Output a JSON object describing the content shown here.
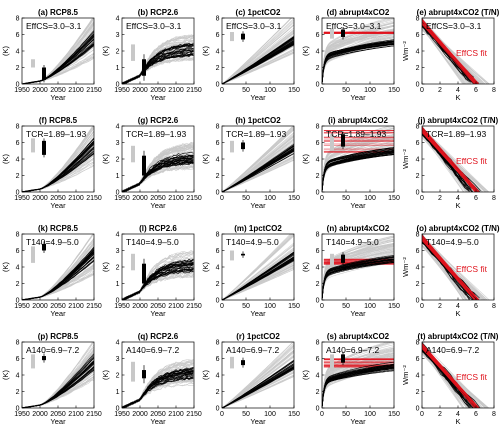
{
  "colors": {
    "ensemble": "#c8c8c8",
    "model": "#000000",
    "fit": "#e0141e"
  },
  "chart_data": [
    {
      "id": "a",
      "type": "line",
      "title": "(a) RCP8.5",
      "ylabel": "(K)",
      "xlabel": "Year",
      "xlim": [
        1950,
        2150
      ],
      "ylim": [
        0,
        8
      ],
      "xticks": [
        1950,
        2000,
        2050,
        2100,
        2150
      ],
      "yticks": [
        0,
        2,
        4,
        6,
        8
      ],
      "annotation": "EffCS=3.0–3.1",
      "kind": "rcp85",
      "box": {
        "light": [
          2,
          3
        ],
        "dark": [
          0.5,
          2
        ]
      }
    },
    {
      "id": "b",
      "type": "line",
      "title": "(b) RCP2.6",
      "ylabel": "(K)",
      "xlabel": "Year",
      "xlim": [
        1950,
        2150
      ],
      "ylim": [
        0,
        4
      ],
      "xticks": [
        1950,
        2000,
        2050,
        2100,
        2150
      ],
      "yticks": [
        0,
        1,
        2,
        3,
        4
      ],
      "annotation": "EffCS=3.0–3.1",
      "kind": "rcp26",
      "box": {
        "light": [
          1.4,
          2.4
        ],
        "dark": [
          0.5,
          1.5
        ]
      }
    },
    {
      "id": "c",
      "type": "line",
      "title": "(c) 1pctCO2",
      "ylabel": "(K)",
      "xlabel": "Year",
      "xlim": [
        0,
        150
      ],
      "ylim": [
        0,
        8
      ],
      "xticks": [
        0,
        50,
        100,
        150
      ],
      "yticks": [
        0,
        2,
        4,
        6,
        8
      ],
      "annotation": "EffCS=3.0–3.1",
      "kind": "pct",
      "box": {
        "light": [
          5.2,
          6.3
        ],
        "dark": [
          5.4,
          6.1
        ]
      }
    },
    {
      "id": "d",
      "type": "line",
      "title": "(d) abrupt4xCO2",
      "ylabel": "(K)",
      "xlabel": "Year",
      "xlim": [
        0,
        150
      ],
      "ylim": [
        0,
        8
      ],
      "xticks": [
        0,
        50,
        100,
        150
      ],
      "yticks": [
        0,
        2,
        4,
        6,
        8
      ],
      "annotation": "EffCS=3.0–3.1",
      "kind": "abrupt",
      "hfit": [
        6.1,
        6.3
      ],
      "box": {
        "light": [
          5.5,
          6.7
        ],
        "dark": [
          5.7,
          6.6
        ]
      }
    },
    {
      "id": "e",
      "type": "scatter",
      "title": "(e) abrupt4xCO2 (T/N)",
      "ylabel": "Wm⁻²",
      "xlabel": "K",
      "xlim": [
        0,
        8
      ],
      "ylim": [
        0,
        8
      ],
      "xticks": [
        0,
        2,
        4,
        6,
        8
      ],
      "yticks": [
        0,
        2,
        4,
        6,
        8
      ],
      "annotation": "EffCS=3.0–3.1",
      "fit_label": "EffCS fit",
      "kind": "tn"
    },
    {
      "id": "f",
      "type": "line",
      "title": "(f) RCP8.5",
      "ylabel": "(K)",
      "xlabel": "Year",
      "xlim": [
        1950,
        2150
      ],
      "ylim": [
        0,
        8
      ],
      "xticks": [
        1950,
        2000,
        2050,
        2100,
        2150
      ],
      "yticks": [
        0,
        2,
        4,
        6,
        8
      ],
      "annotation": "TCR=1.89–1.93",
      "kind": "rcp85",
      "box": {
        "light": [
          4.8,
          6.5
        ],
        "dark": [
          4.5,
          6.2
        ]
      }
    },
    {
      "id": "g",
      "type": "line",
      "title": "(g) RCP2.6",
      "ylabel": "(K)",
      "xlabel": "Year",
      "xlim": [
        1950,
        2150
      ],
      "ylim": [
        0,
        4
      ],
      "xticks": [
        1950,
        2000,
        2050,
        2100,
        2150
      ],
      "yticks": [
        0,
        1,
        2,
        3,
        4
      ],
      "annotation": "TCR=1.89–1.93",
      "kind": "rcp26",
      "box": {
        "light": [
          1.8,
          2.8
        ],
        "dark": [
          1.0,
          2.2
        ]
      }
    },
    {
      "id": "h",
      "type": "line",
      "title": "(h) 1pctCO2",
      "ylabel": "(K)",
      "xlabel": "Year",
      "xlim": [
        0,
        150
      ],
      "ylim": [
        0,
        8
      ],
      "xticks": [
        0,
        50,
        100,
        150
      ],
      "yticks": [
        0,
        2,
        4,
        6,
        8
      ],
      "annotation": "TCR=1.89–1.93",
      "kind": "pct",
      "box": {
        "light": [
          4.8,
          6.2
        ],
        "dark": [
          5.2,
          6.0
        ]
      }
    },
    {
      "id": "i",
      "type": "line",
      "title": "(i) abrupt4xCO2",
      "ylabel": "(K)",
      "xlabel": "Year",
      "xlim": [
        0,
        150
      ],
      "ylim": [
        0,
        8
      ],
      "xticks": [
        0,
        50,
        100,
        150
      ],
      "yticks": [
        0,
        2,
        4,
        6,
        8
      ],
      "annotation": "TCR=1.89–1.93",
      "kind": "abrupt",
      "hfit": [
        4.8,
        7.5
      ],
      "box": {
        "light": [
          5.0,
          7.0
        ],
        "dark": [
          5.5,
          7.0
        ]
      }
    },
    {
      "id": "j",
      "type": "scatter",
      "title": "(j) abrupt4xCO2 (T/N)",
      "ylabel": "Wm⁻²",
      "xlabel": "K",
      "xlim": [
        0,
        8
      ],
      "ylim": [
        0,
        8
      ],
      "xticks": [
        0,
        2,
        4,
        6,
        8
      ],
      "yticks": [
        0,
        2,
        4,
        6,
        8
      ],
      "annotation": "TCR=1.89–1.93",
      "fit_label": "EffCS fit",
      "kind": "tn"
    },
    {
      "id": "k",
      "type": "line",
      "title": "(k) RCP8.5",
      "ylabel": "(K)",
      "xlabel": "Year",
      "xlim": [
        1950,
        2150
      ],
      "ylim": [
        0,
        8
      ],
      "xticks": [
        1950,
        2000,
        2050,
        2100,
        2150
      ],
      "yticks": [
        0,
        2,
        4,
        6,
        8
      ],
      "annotation": "T140=4.9–5.0",
      "kind": "rcp85",
      "box": {
        "light": [
          4.5,
          6.5
        ],
        "dark": [
          6.0,
          6.8
        ]
      }
    },
    {
      "id": "l",
      "type": "line",
      "title": "(l) RCP2.6",
      "ylabel": "(K)",
      "xlabel": "Year",
      "xlim": [
        1950,
        2150
      ],
      "ylim": [
        0,
        4
      ],
      "xticks": [
        1950,
        2000,
        2050,
        2100,
        2150
      ],
      "yticks": [
        0,
        1,
        2,
        3,
        4
      ],
      "annotation": "T140=4.9–5.0",
      "kind": "rcp26",
      "box": {
        "light": [
          1.8,
          2.8
        ],
        "dark": [
          1.0,
          2.2
        ]
      }
    },
    {
      "id": "m",
      "type": "line",
      "title": "(m) 1pctCO2",
      "ylabel": "(K)",
      "xlabel": "Year",
      "xlim": [
        0,
        150
      ],
      "ylim": [
        0,
        8
      ],
      "xticks": [
        0,
        50,
        100,
        150
      ],
      "yticks": [
        0,
        2,
        4,
        6,
        8
      ],
      "annotation": "T140=4.9–5.0",
      "kind": "pct",
      "box": {
        "light": [
          4.8,
          6.0
        ],
        "dark": [
          5.4,
          5.6
        ]
      }
    },
    {
      "id": "n",
      "type": "line",
      "title": "(n) abrupt4xCO2",
      "ylabel": "(K)",
      "xlabel": "Year",
      "xlim": [
        0,
        150
      ],
      "ylim": [
        0,
        8
      ],
      "xticks": [
        0,
        50,
        100,
        150
      ],
      "yticks": [
        0,
        2,
        4,
        6,
        8
      ],
      "annotation": "T140=4.9–5.0",
      "kind": "abrupt",
      "hfit": [
        4.3,
        5.0
      ],
      "box": {
        "light": [
          4.0,
          5.6
        ],
        "dark": [
          4.5,
          5.5
        ]
      }
    },
    {
      "id": "o",
      "type": "scatter",
      "title": "(o) abrupt4xCO2 (T/N)",
      "ylabel": "Wm⁻²",
      "xlabel": "K",
      "xlim": [
        0,
        8
      ],
      "ylim": [
        0,
        8
      ],
      "xticks": [
        0,
        2,
        4,
        6,
        8
      ],
      "yticks": [
        0,
        2,
        4,
        6,
        8
      ],
      "annotation": "T140=4.9–5.0",
      "fit_label": "EffCS fit",
      "kind": "tn"
    },
    {
      "id": "p",
      "type": "line",
      "title": "(p) RCP8.5",
      "ylabel": "(K)",
      "xlabel": "Year",
      "xlim": [
        1950,
        2150
      ],
      "ylim": [
        0,
        8
      ],
      "xticks": [
        1950,
        2000,
        2050,
        2100,
        2150
      ],
      "yticks": [
        0,
        2,
        4,
        6,
        8
      ],
      "annotation": "A140=6.9–7.2",
      "kind": "rcp85",
      "box": {
        "light": [
          4.8,
          6.5
        ],
        "dark": [
          5.8,
          6.3
        ]
      }
    },
    {
      "id": "q",
      "type": "line",
      "title": "(q) RCP2.6",
      "ylabel": "(K)",
      "xlabel": "Year",
      "xlim": [
        1950,
        2150
      ],
      "ylim": [
        0,
        4
      ],
      "xticks": [
        1950,
        2000,
        2050,
        2100,
        2150
      ],
      "yticks": [
        0,
        1,
        2,
        3,
        4
      ],
      "annotation": "A140=6.9–7.2",
      "kind": "rcp26",
      "box": {
        "light": [
          1.6,
          2.8
        ],
        "dark": [
          1.8,
          2.3
        ]
      }
    },
    {
      "id": "r",
      "type": "line",
      "title": "(r) 1pctCO2",
      "ylabel": "(K)",
      "xlabel": "Year",
      "xlim": [
        0,
        150
      ],
      "ylim": [
        0,
        8
      ],
      "xticks": [
        0,
        50,
        100,
        150
      ],
      "yticks": [
        0,
        2,
        4,
        6,
        8
      ],
      "annotation": "A140=6.9–7.2",
      "kind": "pct",
      "box": {
        "light": [
          4.8,
          6.2
        ],
        "dark": [
          5.2,
          5.8
        ]
      }
    },
    {
      "id": "s",
      "type": "line",
      "title": "(s) abrupt4xCO2",
      "ylabel": "(K)",
      "xlabel": "Year",
      "xlim": [
        0,
        150
      ],
      "ylim": [
        0,
        8
      ],
      "xticks": [
        0,
        50,
        100,
        150
      ],
      "yticks": [
        0,
        2,
        4,
        6,
        8
      ],
      "annotation": "A140=6.9–7.2",
      "kind": "abrupt",
      "hfit": [
        4.8,
        6.2
      ],
      "box": {
        "light": [
          4.5,
          6.5
        ],
        "dark": [
          5.5,
          6.5
        ]
      }
    },
    {
      "id": "t",
      "type": "scatter",
      "title": "(t) abrupt4xCO2 (T/N)",
      "ylabel": "Wm⁻²",
      "xlabel": "K",
      "xlim": [
        0,
        8
      ],
      "ylim": [
        0,
        8
      ],
      "xticks": [
        0,
        2,
        4,
        6,
        8
      ],
      "yticks": [
        0,
        2,
        4,
        6,
        8
      ],
      "annotation": "A140=6.9–7.2",
      "fit_label": "EffCS fit",
      "kind": "tn"
    }
  ]
}
